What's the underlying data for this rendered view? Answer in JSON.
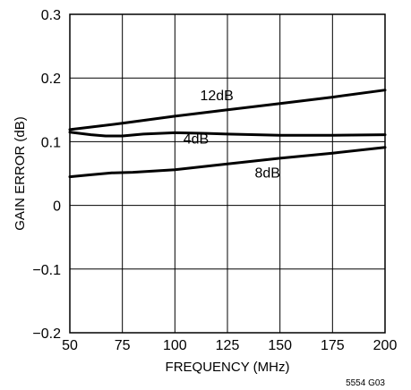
{
  "chart_data": {
    "type": "line",
    "title": "",
    "xlabel": "FREQUENCY (MHz)",
    "ylabel": "GAIN ERROR (dB)",
    "xlim": [
      50,
      200
    ],
    "ylim": [
      -0.2,
      0.3
    ],
    "xticks": [
      50,
      75,
      100,
      125,
      150,
      175,
      200
    ],
    "yticks": [
      -0.2,
      -0.1,
      0,
      0.1,
      0.2,
      0.3
    ],
    "xtick_labels": [
      "50",
      "75",
      "100",
      "125",
      "150",
      "175",
      "200"
    ],
    "ytick_labels": [
      "−0.2",
      "−0.1",
      "0",
      "0.1",
      "0.2",
      "0.3"
    ],
    "grid": true,
    "series": [
      {
        "name": "12dB",
        "x": [
          50,
          75,
          100,
          125,
          150,
          175,
          200
        ],
        "y": [
          0.119,
          0.129,
          0.14,
          0.15,
          0.16,
          0.17,
          0.181
        ]
      },
      {
        "name": "4dB",
        "x": [
          50,
          60,
          67,
          75,
          85,
          100,
          115,
          125,
          150,
          175,
          200
        ],
        "y": [
          0.115,
          0.111,
          0.109,
          0.109,
          0.112,
          0.114,
          0.113,
          0.112,
          0.11,
          0.11,
          0.111
        ]
      },
      {
        "name": "8dB",
        "x": [
          50,
          60,
          70,
          80,
          100,
          125,
          150,
          175,
          200
        ],
        "y": [
          0.045,
          0.048,
          0.051,
          0.052,
          0.056,
          0.065,
          0.074,
          0.082,
          0.091
        ]
      }
    ],
    "annotations": [
      {
        "text": "12dB",
        "series": "12dB",
        "x": 112,
        "y": 0.165
      },
      {
        "text": "4dB",
        "series": "4dB",
        "x": 104,
        "y": 0.097
      },
      {
        "text": "8dB",
        "series": "8dB",
        "x": 138,
        "y": 0.044
      }
    ],
    "figure_id": "5554 G03"
  }
}
